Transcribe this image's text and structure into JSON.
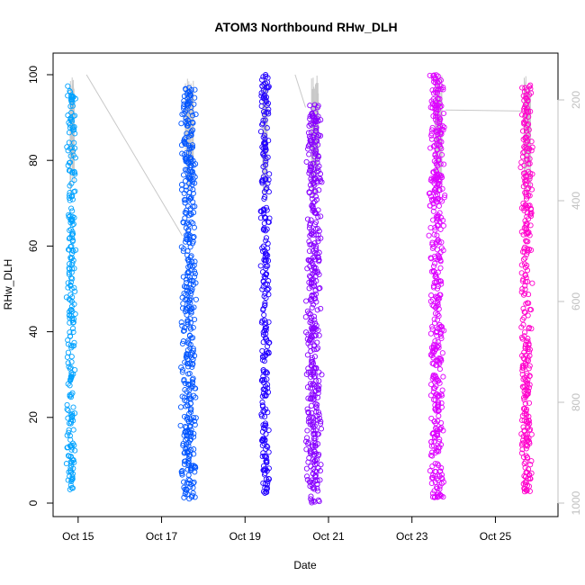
{
  "chart_data": {
    "type": "scatter",
    "title": "ATOM3 Northbound RHw_DLH",
    "xlabel": "Date",
    "ylabel": "RHw_DLH",
    "ylim": [
      0,
      100
    ],
    "xlim_days": [
      14.4,
      26.5
    ],
    "x_ticks": [
      {
        "day": 15,
        "label": "Oct 15"
      },
      {
        "day": 17,
        "label": "Oct 17"
      },
      {
        "day": 19,
        "label": "Oct 19"
      },
      {
        "day": 21,
        "label": "Oct 21"
      },
      {
        "day": 23,
        "label": "Oct 23"
      },
      {
        "day": 25,
        "label": "Oct 25"
      }
    ],
    "y_ticks": [
      0,
      20,
      40,
      60,
      80,
      100
    ],
    "right_axis": {
      "ticks": [
        200,
        400,
        600,
        800,
        1000
      ],
      "range": [
        1000,
        150
      ],
      "color": "#c0c0c0"
    },
    "grid": false,
    "legend": "none",
    "series": [
      {
        "start": 14.72,
        "end": 14.95,
        "color": "#00a2ff",
        "y_min": 3,
        "y_max": 98
      },
      {
        "start": 17.45,
        "end": 17.85,
        "color": "#0055ff",
        "y_min": 1,
        "y_max": 97
      },
      {
        "start": 19.35,
        "end": 19.6,
        "color": "#2200ff",
        "y_min": 2,
        "y_max": 100
      },
      {
        "start": 20.45,
        "end": 20.85,
        "color": "#8800ff",
        "y_min": 0,
        "y_max": 93
      },
      {
        "start": 23.4,
        "end": 23.8,
        "color": "#dd00ff",
        "y_min": 1,
        "y_max": 100
      },
      {
        "start": 25.6,
        "end": 25.9,
        "color": "#ff00cc",
        "y_min": 2,
        "y_max": 98
      }
    ],
    "pressure_trace": {
      "color": "#c8c8c8",
      "connectors": [
        {
          "x": [
            15.2,
            17.5
          ],
          "p": [
            150,
            470
          ]
        },
        {
          "x": [
            20.2,
            20.45
          ],
          "p": [
            150,
            215
          ]
        },
        {
          "x": [
            23.8,
            25.65
          ],
          "p": [
            220,
            222
          ]
        }
      ]
    }
  }
}
